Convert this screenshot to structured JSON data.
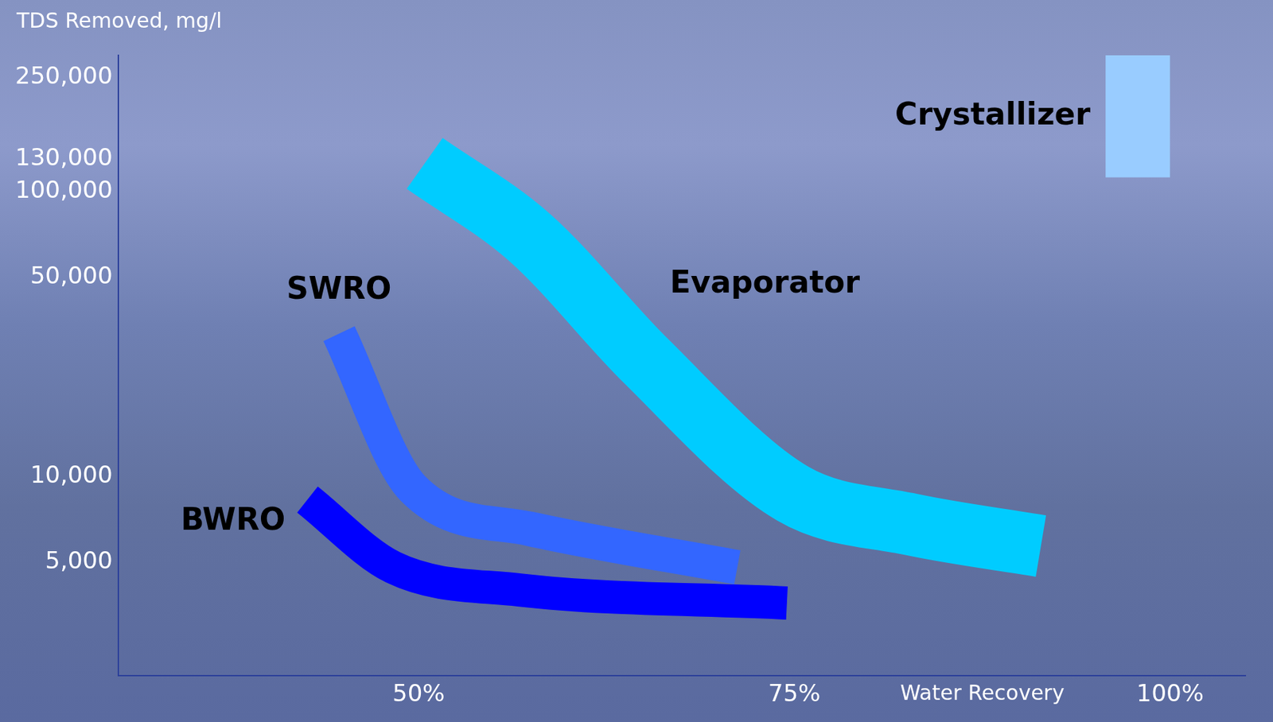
{
  "chart_data": {
    "type": "line",
    "y_label": "TDS Removed, mg/l",
    "x_label": "Water Recovery",
    "log": "y",
    "grid": false,
    "xlim": [
      30,
      105
    ],
    "xticks": [
      {
        "value": 50,
        "label": "50%"
      },
      {
        "value": 75,
        "label": "75%"
      },
      {
        "value": 100,
        "label": "100%"
      }
    ],
    "ylim": [
      2000,
      300000
    ],
    "yticks": [
      {
        "value": 5000,
        "label": "5,000"
      },
      {
        "value": 10000,
        "label": "10,000"
      },
      {
        "value": 50000,
        "label": "50,000"
      },
      {
        "value": 100000,
        "label": "100,000"
      },
      {
        "value": 130000,
        "label": "130,000"
      },
      {
        "value": 250000,
        "label": "250,000"
      }
    ],
    "series": [
      {
        "name": "BWRO",
        "color": "#0000ff",
        "x": [
          42.6,
          48.3,
          56.7,
          74.5
        ],
        "values": [
          8300,
          4800,
          4000,
          3600
        ]
      },
      {
        "name": "SWRO",
        "color": "#3366ff",
        "x": [
          44.7,
          49.6,
          57.4,
          71.2
        ],
        "values": [
          31700,
          9100,
          6550,
          4800
        ]
      },
      {
        "name": "Evaporator",
        "color": "#00ccff",
        "x": [
          50.4,
          57.4,
          65.1,
          74.9,
          82.7,
          91.4
        ],
        "values": [
          125300,
          68800,
          25500,
          8700,
          6800,
          5700
        ]
      },
      {
        "name": "Crystallizer",
        "type": "range",
        "color": "#99ccff",
        "x": [
          95.7,
          100
        ],
        "values": [
          300000,
          300000
        ],
        "low": [
          112000,
          112000
        ]
      }
    ]
  }
}
